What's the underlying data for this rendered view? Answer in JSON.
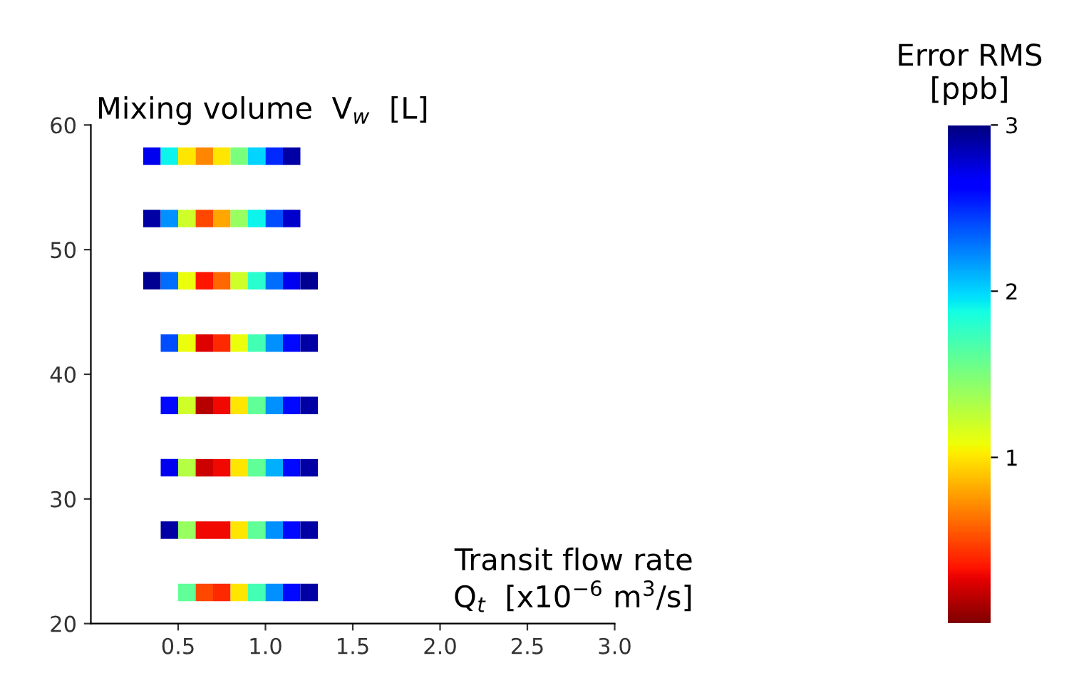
{
  "chart_data": {
    "type": "scatter",
    "title": "Mixing volume  V$_{w}$  [L]",
    "annotations": [
      "Transit flow rate\nQ$_{t}$  [x10$^{−6}$ m$^{3}$/s]"
    ],
    "clabel": "Error RMS\n[ppb]",
    "marker": "square",
    "x": [
      0.35,
      0.45,
      0.55,
      0.65,
      0.75,
      0.85,
      0.95,
      1.05,
      1.15,
      0.35,
      0.45,
      0.55,
      0.65,
      0.75,
      0.85,
      0.95,
      1.05,
      1.15,
      0.35,
      0.45,
      0.55,
      0.65,
      0.75,
      0.85,
      0.95,
      1.05,
      1.15,
      1.25,
      0.45,
      0.55,
      0.65,
      0.75,
      0.85,
      0.95,
      1.05,
      1.15,
      1.25,
      0.45,
      0.55,
      0.65,
      0.75,
      0.85,
      0.95,
      1.05,
      1.15,
      1.25,
      0.45,
      0.55,
      0.65,
      0.75,
      0.85,
      0.95,
      1.05,
      1.15,
      1.25,
      0.45,
      0.55,
      0.65,
      0.75,
      0.85,
      0.95,
      1.05,
      1.15,
      1.25,
      0.55,
      0.65,
      0.75,
      0.85,
      0.95,
      1.05,
      1.15,
      1.25
    ],
    "values": [
      57.5,
      57.5,
      57.5,
      57.5,
      57.5,
      57.5,
      57.5,
      57.5,
      57.5,
      52.5,
      52.5,
      52.5,
      52.5,
      52.5,
      52.5,
      52.5,
      52.5,
      52.5,
      47.5,
      47.5,
      47.5,
      47.5,
      47.5,
      47.5,
      47.5,
      47.5,
      47.5,
      47.5,
      42.5,
      42.5,
      42.5,
      42.5,
      42.5,
      42.5,
      42.5,
      42.5,
      42.5,
      37.5,
      37.5,
      37.5,
      37.5,
      37.5,
      37.5,
      37.5,
      37.5,
      37.5,
      32.5,
      32.5,
      32.5,
      32.5,
      32.5,
      32.5,
      32.5,
      32.5,
      32.5,
      27.5,
      27.5,
      27.5,
      27.5,
      27.5,
      27.5,
      27.5,
      27.5,
      27.5,
      22.5,
      22.5,
      22.5,
      22.5,
      22.5,
      22.5,
      22.5,
      22.5
    ],
    "cvalues": [
      2.7,
      1.9,
      1.0,
      0.7,
      1.0,
      1.5,
      2.0,
      2.5,
      2.9,
      2.9,
      2.2,
      1.2,
      0.5,
      0.8,
      1.4,
      1.9,
      2.4,
      2.8,
      2.95,
      2.3,
      1.1,
      0.35,
      0.6,
      1.2,
      1.8,
      2.3,
      2.7,
      2.95,
      2.4,
      1.1,
      0.25,
      0.4,
      1.1,
      1.7,
      2.2,
      2.6,
      2.9,
      2.6,
      1.2,
      0.15,
      0.3,
      1.0,
      1.6,
      2.2,
      2.6,
      2.9,
      2.7,
      1.3,
      0.2,
      0.3,
      1.0,
      1.6,
      2.1,
      2.6,
      2.9,
      2.9,
      1.4,
      0.3,
      0.3,
      1.0,
      1.6,
      2.2,
      2.6,
      2.9,
      1.6,
      0.5,
      0.4,
      1.0,
      1.7,
      2.2,
      2.6,
      2.9
    ],
    "xlim": [
      0,
      3
    ],
    "xticks": [
      0.5,
      {
        "value": 1,
        "label": "1.0"
      },
      1.5,
      {
        "value": 2,
        "label": "2.0"
      },
      2.5,
      {
        "value": 3,
        "label": "3.0"
      }
    ],
    "ylim": [
      20,
      60
    ],
    "yticks": [
      20,
      30,
      40,
      50,
      60
    ],
    "clim": [
      0,
      3
    ],
    "cticks": [
      1,
      2,
      3
    ]
  }
}
